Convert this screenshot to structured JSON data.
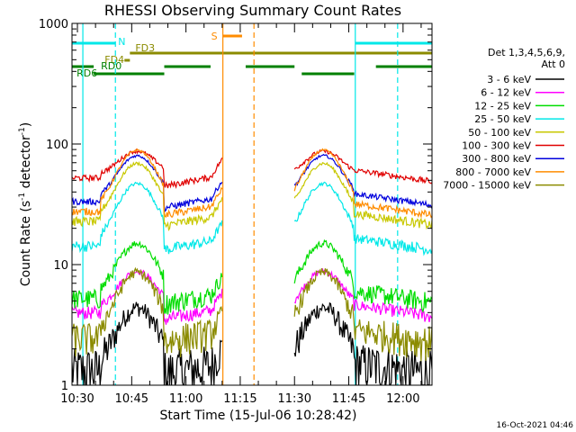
{
  "chart_data": {
    "type": "line",
    "title": "RHESSI Observing Summary Count Rates",
    "xlabel": "Start Time (15-Jul-06 10:28:42)",
    "ylabel_main": "Count Rate (s",
    "ylabel_sup1": "-1",
    "ylabel_mid": " detector",
    "ylabel_sup2": "-1",
    "ylabel_end": ")",
    "yscale": "log",
    "ylim": [
      1,
      1000
    ],
    "xlim_minutes": [
      -1.5,
      98
    ],
    "timestamp": "16-Oct-2021 04:46",
    "x_ticks": [
      {
        "label": "10:30",
        "minutes": 0
      },
      {
        "label": "10:45",
        "minutes": 15
      },
      {
        "label": "11:00",
        "minutes": 30
      },
      {
        "label": "11:15",
        "minutes": 45
      },
      {
        "label": "11:30",
        "minutes": 60
      },
      {
        "label": "11:45",
        "minutes": 75
      },
      {
        "label": "12:00",
        "minutes": 90
      }
    ],
    "y_ticks": [
      {
        "label": "1",
        "value": 1
      },
      {
        "label": "10",
        "value": 10
      },
      {
        "label": "100",
        "value": 100
      },
      {
        "label": "1000",
        "value": 1000
      }
    ],
    "legend_header": [
      "Det 1,3,4,5,6,9,",
      "Att 0"
    ],
    "legend_position": "right",
    "series": [
      {
        "name": "3 - 6 keV",
        "color": "#000000",
        "base": 1.4,
        "amp": 3.0,
        "noise": 0.7
      },
      {
        "name": "6 - 12 keV",
        "color": "#ff00ff",
        "base": 4.2,
        "amp": 4.6,
        "noise": 0.5
      },
      {
        "name": "12 - 25 keV",
        "color": "#00dd00",
        "base": 5.5,
        "amp": 9.5,
        "noise": 1.0
      },
      {
        "name": "25 - 50 keV",
        "color": "#00e8e8",
        "base": 15.0,
        "amp": 32,
        "noise": 1.5
      },
      {
        "name": "50 - 100 keV",
        "color": "#c8c800",
        "base": 24.0,
        "amp": 45,
        "noise": 2.0
      },
      {
        "name": "100 - 300 keV",
        "color": "#e00000",
        "base": 55.0,
        "amp": 32,
        "noise": 3.0
      },
      {
        "name": "300 - 800 keV",
        "color": "#0000dd",
        "base": 35.0,
        "amp": 45,
        "noise": 2.0
      },
      {
        "name": "800 - 7000 keV",
        "color": "#ff8c00",
        "base": 29.0,
        "amp": 60,
        "noise": 2.0
      },
      {
        "name": "7000 - 15000 keV",
        "color": "#8b8b00",
        "base": 2.6,
        "amp": 6.0,
        "noise": 0.8
      }
    ],
    "data_segments_minutes": [
      [
        -1.5,
        40.2
      ],
      [
        60,
        98
      ]
    ],
    "event_lines": [
      {
        "minutes": 1.5,
        "color": "#00e8e8",
        "style": "solid"
      },
      {
        "minutes": 10.5,
        "color": "#00e8e8",
        "style": "dashed"
      },
      {
        "minutes": 40.2,
        "color": "#ff8c00",
        "style": "solid"
      },
      {
        "minutes": 48.8,
        "color": "#ff8c00",
        "style": "dashed"
      },
      {
        "minutes": 76.8,
        "color": "#00e8e8",
        "style": "solid"
      },
      {
        "minutes": 88.5,
        "color": "#00e8e8",
        "style": "dashed"
      }
    ],
    "flag_bars": [
      {
        "label": "N",
        "color": "#00e8e8",
        "y": 48,
        "segments": [
          [
            -1.5,
            10.5
          ],
          [
            76.8,
            98
          ]
        ]
      },
      {
        "label": "S",
        "color": "#ff8c00",
        "y": 40,
        "segments": [
          [
            40.2,
            45.5
          ]
        ]
      },
      {
        "label": "FD3",
        "color": "#8b8b00",
        "y": 59,
        "segments": [
          [
            14.5,
            98
          ]
        ]
      },
      {
        "label": "FD4",
        "color": "#8b8b00",
        "y": 67,
        "segments": [
          [
            13.0,
            14.5
          ]
        ]
      },
      {
        "label": "RD0",
        "color": "#008000",
        "y": 74,
        "segments": [
          [
            -1.5,
            4.5
          ],
          [
            24.0,
            36.8
          ],
          [
            46.5,
            60.0
          ],
          [
            82.5,
            98
          ]
        ]
      },
      {
        "label": "RD6",
        "color": "#008000",
        "y": 82,
        "segments": [
          [
            4.5,
            24.0
          ],
          [
            62.0,
            76.5
          ]
        ]
      }
    ]
  }
}
